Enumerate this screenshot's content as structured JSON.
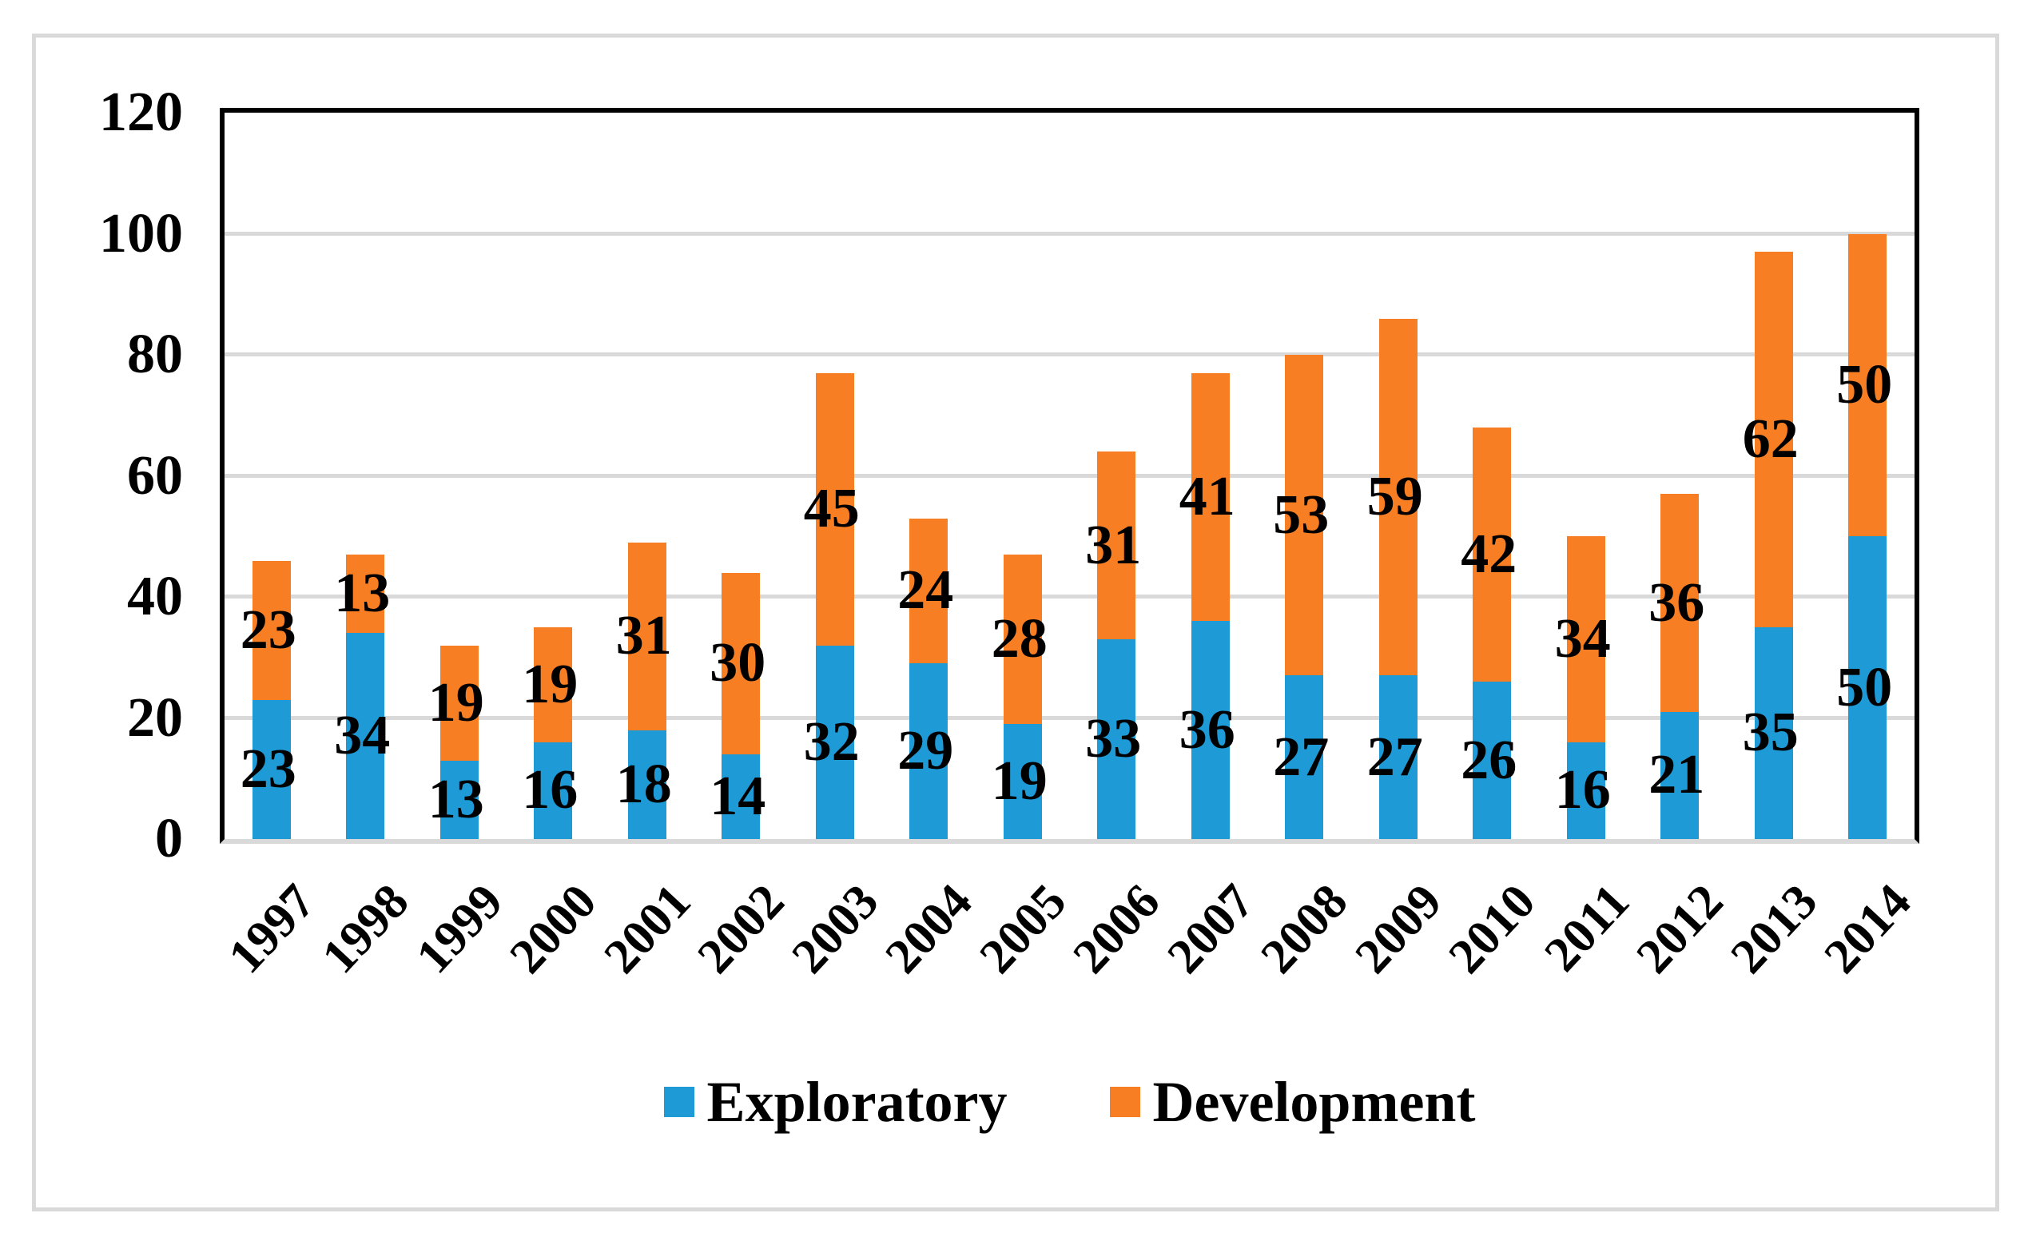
{
  "chart_data": {
    "type": "bar",
    "stacked": true,
    "title": "",
    "xlabel": "",
    "ylabel": "",
    "categories": [
      "1997",
      "1998",
      "1999",
      "2000",
      "2001",
      "2002",
      "2003",
      "2004",
      "2005",
      "2006",
      "2007",
      "2008",
      "2009",
      "2010",
      "2011",
      "2012",
      "2013",
      "2014"
    ],
    "series": [
      {
        "name": "Exploratory",
        "color": "#1E9AD6",
        "values": [
          23,
          34,
          13,
          16,
          18,
          14,
          32,
          29,
          19,
          33,
          36,
          27,
          27,
          26,
          16,
          21,
          35,
          50
        ]
      },
      {
        "name": "Development",
        "color": "#F87E23",
        "values": [
          23,
          13,
          19,
          19,
          31,
          30,
          45,
          24,
          28,
          31,
          41,
          53,
          59,
          42,
          34,
          36,
          62,
          50
        ]
      }
    ],
    "totals": [
      46,
      47,
      32,
      35,
      49,
      44,
      77,
      53,
      47,
      64,
      77,
      80,
      86,
      68,
      50,
      57,
      97,
      100
    ],
    "ylim": [
      0,
      120
    ],
    "yticks": [
      0,
      20,
      40,
      60,
      80,
      100,
      120
    ],
    "ytick_step": 20,
    "grid": true,
    "gridline_color": "#D9D9D9",
    "axis_color": "#000000",
    "frame_color": "#D9D9D9",
    "data_labels": true,
    "legend_position": "bottom"
  }
}
